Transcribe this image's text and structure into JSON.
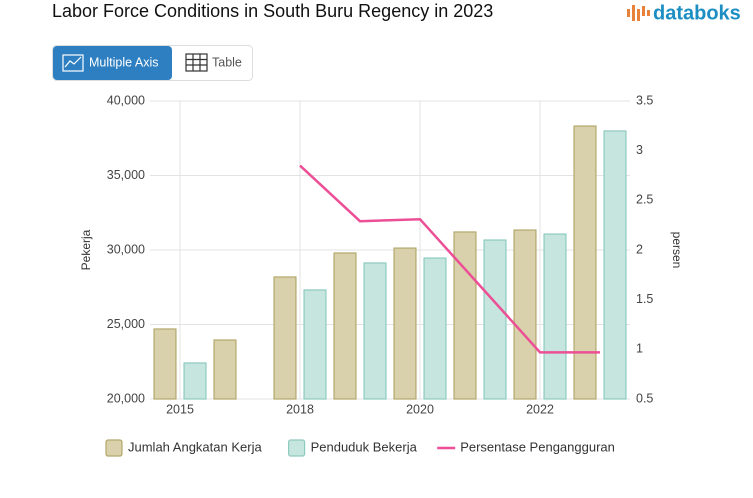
{
  "ui": {
    "tabs": [
      "Multiple Axis",
      "Table"
    ],
    "logo": "databoks"
  },
  "chart_data": {
    "type": "bar-line",
    "title": "Labor Force Conditions in South Buru Regency in 2023",
    "y_label": "Pekerja",
    "y2_label": "persen",
    "categories": [
      "2015",
      null,
      "2018",
      null,
      "2020",
      null,
      "2022",
      null
    ],
    "series": [
      {
        "name": "Jumlah Angkatan Kerja",
        "type": "bar",
        "color": "#d9d1ac",
        "stroke": "#b3a86c",
        "values": [
          24700,
          23960,
          28190,
          29800,
          30130,
          31210,
          31340,
          38320
        ]
      },
      {
        "name": "Penduduk Bekerja",
        "type": "bar",
        "color": "#c6e5df",
        "stroke": "#8dcabf",
        "values": [
          22420,
          null,
          27320,
          29130,
          29460,
          30670,
          31070,
          37990
        ]
      },
      {
        "name": "Persentase Pengangguran",
        "type": "line",
        "axis": "y2",
        "color": "#ec4f95",
        "values": [
          null,
          null,
          2.85,
          2.29,
          2.31,
          1.64,
          0.97,
          0.97
        ]
      }
    ],
    "ylim": [
      20000,
      40000
    ],
    "yticks": [
      {
        "value": 20000,
        "label": "20,000"
      },
      {
        "value": 25000,
        "label": "25,000"
      },
      {
        "value": 30000,
        "label": "30,000"
      },
      {
        "value": 35000,
        "label": "35,000"
      },
      {
        "value": 40000,
        "label": "40,000"
      }
    ],
    "y2lim": [
      0.5,
      3.5
    ],
    "y2ticks": [
      0.5,
      1,
      1.5,
      2,
      2.5,
      3,
      3.5
    ],
    "grid": true,
    "legend": "bottom"
  }
}
